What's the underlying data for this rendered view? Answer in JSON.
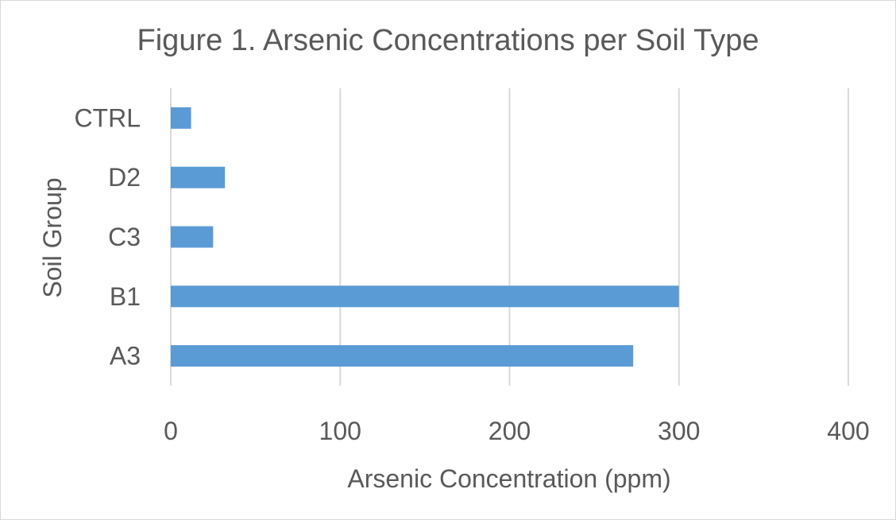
{
  "chart_data": {
    "type": "bar",
    "orientation": "horizontal",
    "title": "Figure 1. Arsenic Concentrations per Soil Type",
    "xlabel": "Arsenic Concentration (ppm)",
    "ylabel": "Soil Group",
    "categories": [
      "A3",
      "B1",
      "C3",
      "D2",
      "CTRL"
    ],
    "values": [
      273,
      300,
      25,
      32,
      12
    ],
    "xlim": [
      0,
      400
    ],
    "xticks": [
      0,
      100,
      200,
      300,
      400
    ],
    "grid": true,
    "legend": "none",
    "bar_color": "#5b9bd5"
  }
}
